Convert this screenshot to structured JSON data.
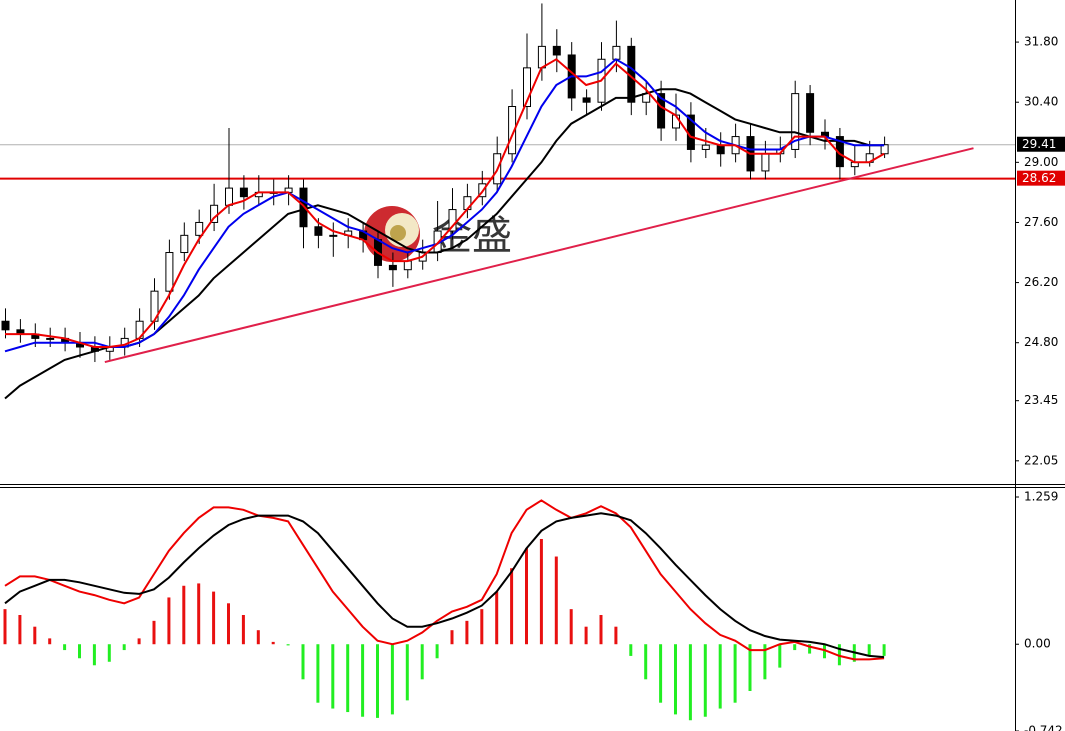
{
  "chart_data": [
    {
      "type": "candlestick",
      "open": [
        25.3,
        25.1,
        25.0,
        24.9,
        24.9,
        24.8,
        24.7,
        24.6,
        24.7,
        24.9,
        25.3,
        26.0,
        26.9,
        27.3,
        27.6,
        28.0,
        28.4,
        28.2,
        28.3,
        28.3,
        28.4,
        27.5,
        27.3,
        27.3,
        27.4,
        27.2,
        26.6,
        26.5,
        26.7,
        26.9,
        27.4,
        27.9,
        28.2,
        28.5,
        29.2,
        30.3,
        31.2,
        31.7,
        31.5,
        30.5,
        30.4,
        31.4,
        31.7,
        30.4,
        30.6,
        29.8,
        30.1,
        29.3,
        29.4,
        29.2,
        29.6,
        28.8,
        29.2,
        29.3,
        30.6,
        29.7,
        29.6,
        28.9,
        29.0,
        29.2
      ],
      "high": [
        25.6,
        25.35,
        25.25,
        25.15,
        25.15,
        25.05,
        24.95,
        24.95,
        25.15,
        25.6,
        26.3,
        27.2,
        27.6,
        27.9,
        28.5,
        29.8,
        28.7,
        28.7,
        28.6,
        28.7,
        28.6,
        27.7,
        27.6,
        27.7,
        27.6,
        27.4,
        26.9,
        26.9,
        27.2,
        28.1,
        28.4,
        28.5,
        28.8,
        29.6,
        30.7,
        32.0,
        32.7,
        32.1,
        31.8,
        30.7,
        31.8,
        32.3,
        31.9,
        30.9,
        30.9,
        30.6,
        30.4,
        29.8,
        29.7,
        29.9,
        29.9,
        29.5,
        29.6,
        30.9,
        30.8,
        30.0,
        29.8,
        29.4,
        29.5,
        29.6
      ],
      "low": [
        24.9,
        24.8,
        24.7,
        24.7,
        24.6,
        24.45,
        24.35,
        24.4,
        24.5,
        24.7,
        25.1,
        25.8,
        26.7,
        27.1,
        27.4,
        27.8,
        27.9,
        28.0,
        28.0,
        28.0,
        27.0,
        27.0,
        26.8,
        27.0,
        26.9,
        26.3,
        26.1,
        26.3,
        26.5,
        26.7,
        27.2,
        27.7,
        28.0,
        28.3,
        29.0,
        30.0,
        30.9,
        31.1,
        30.2,
        30.1,
        30.2,
        31.1,
        30.1,
        30.1,
        29.5,
        29.5,
        29.0,
        29.1,
        28.9,
        29.0,
        28.6,
        28.6,
        29.0,
        29.1,
        29.4,
        29.3,
        28.6,
        28.7,
        28.9,
        29.1
      ],
      "close": [
        25.1,
        25.0,
        24.9,
        24.9,
        24.8,
        24.7,
        24.6,
        24.7,
        24.9,
        25.3,
        26.0,
        26.9,
        27.3,
        27.6,
        28.0,
        28.4,
        28.2,
        28.3,
        28.3,
        28.4,
        27.5,
        27.3,
        27.3,
        27.4,
        27.2,
        26.6,
        26.5,
        26.7,
        26.9,
        27.4,
        27.9,
        28.2,
        28.5,
        29.2,
        30.3,
        31.2,
        31.7,
        31.5,
        30.5,
        30.4,
        31.4,
        31.7,
        30.4,
        30.6,
        29.8,
        30.1,
        29.3,
        29.4,
        29.2,
        29.6,
        28.8,
        29.2,
        29.3,
        30.6,
        29.7,
        29.6,
        28.9,
        29.0,
        29.2,
        29.41
      ],
      "overlays": [
        {
          "color": "#000000",
          "values": [
            23.5,
            23.8,
            24.0,
            24.2,
            24.4,
            24.5,
            24.6,
            24.7,
            24.7,
            24.8,
            25.0,
            25.3,
            25.6,
            25.9,
            26.3,
            26.6,
            26.9,
            27.2,
            27.5,
            27.8,
            27.9,
            28.0,
            27.9,
            27.8,
            27.6,
            27.4,
            27.2,
            27.0,
            26.9,
            26.9,
            27.0,
            27.2,
            27.5,
            27.8,
            28.2,
            28.6,
            29.0,
            29.5,
            29.9,
            30.1,
            30.3,
            30.5,
            30.5,
            30.6,
            30.7,
            30.7,
            30.6,
            30.4,
            30.2,
            30.0,
            29.9,
            29.8,
            29.7,
            29.7,
            29.6,
            29.5,
            29.5,
            29.5,
            29.4,
            29.4
          ]
        },
        {
          "color": "#0000ee",
          "values": [
            24.6,
            24.7,
            24.8,
            24.8,
            24.8,
            24.8,
            24.8,
            24.7,
            24.7,
            24.8,
            25.0,
            25.4,
            25.9,
            26.5,
            27.0,
            27.5,
            27.8,
            28.0,
            28.2,
            28.3,
            28.1,
            27.9,
            27.7,
            27.5,
            27.4,
            27.2,
            27.0,
            26.9,
            27.0,
            27.1,
            27.3,
            27.6,
            27.9,
            28.3,
            28.9,
            29.6,
            30.3,
            30.8,
            31.0,
            31.0,
            31.1,
            31.4,
            31.2,
            30.9,
            30.5,
            30.3,
            30.0,
            29.7,
            29.5,
            29.4,
            29.3,
            29.3,
            29.3,
            29.5,
            29.6,
            29.6,
            29.5,
            29.4,
            29.4,
            29.4
          ]
        },
        {
          "color": "#ee0000",
          "values": [
            25.0,
            25.0,
            25.0,
            24.95,
            24.9,
            24.8,
            24.7,
            24.7,
            24.75,
            24.9,
            25.3,
            25.9,
            26.6,
            27.2,
            27.7,
            28.0,
            28.1,
            28.3,
            28.3,
            28.3,
            28.0,
            27.6,
            27.4,
            27.3,
            27.2,
            26.9,
            26.7,
            26.7,
            26.8,
            27.1,
            27.5,
            27.9,
            28.3,
            28.8,
            29.6,
            30.4,
            31.2,
            31.4,
            31.1,
            30.8,
            30.9,
            31.3,
            31.0,
            30.7,
            30.3,
            30.1,
            29.6,
            29.5,
            29.4,
            29.4,
            29.2,
            29.2,
            29.2,
            29.6,
            29.6,
            29.6,
            29.2,
            29.0,
            29.0,
            29.2
          ]
        }
      ],
      "hlines": [
        {
          "value": 29.41,
          "color": "#b0b0b0",
          "label_bg": "#000000"
        },
        {
          "value": 28.62,
          "color": "#e00000",
          "label_bg": "#e00000"
        }
      ],
      "trendline": {
        "x": [
          6.7,
          65
        ],
        "y": [
          24.35,
          29.33
        ],
        "color": "#e0204a"
      },
      "ylim": [
        21.51,
        32.78
      ],
      "yticks": [
        {
          "value": 31.8,
          "label": "31.80"
        },
        {
          "value": 30.4,
          "label": "30.40"
        },
        {
          "value": 29,
          "label": "29.00"
        },
        {
          "value": 27.6,
          "label": "27.60"
        },
        {
          "value": 26.2,
          "label": "26.20"
        },
        {
          "value": 24.8,
          "label": "24.80"
        },
        {
          "value": 23.45,
          "label": "23.45"
        },
        {
          "value": 22.05,
          "label": "22.05"
        }
      ],
      "up_color": "#ffffff",
      "down_color": "#000000"
    },
    {
      "type": "macd",
      "histogram": [
        0.3,
        0.25,
        0.15,
        0.05,
        -0.05,
        -0.12,
        -0.18,
        -0.15,
        -0.05,
        0.05,
        0.2,
        0.4,
        0.5,
        0.52,
        0.45,
        0.35,
        0.25,
        0.12,
        0.02,
        -0.01,
        -0.3,
        -0.5,
        -0.55,
        -0.58,
        -0.62,
        -0.63,
        -0.6,
        -0.48,
        -0.3,
        -0.12,
        0.12,
        0.2,
        0.3,
        0.45,
        0.65,
        0.82,
        0.9,
        0.75,
        0.3,
        0.15,
        0.25,
        0.15,
        -0.1,
        -0.3,
        -0.5,
        -0.6,
        -0.65,
        -0.62,
        -0.55,
        -0.5,
        -0.4,
        -0.3,
        -0.2,
        -0.05,
        -0.08,
        -0.12,
        -0.18,
        -0.15,
        -0.1,
        -0.1
      ],
      "pos_color": "#e81010",
      "neg_color": "#22ee22",
      "series": [
        {
          "color": "#ee0000",
          "values": [
            0.5,
            0.58,
            0.58,
            0.55,
            0.5,
            0.45,
            0.42,
            0.38,
            0.35,
            0.4,
            0.6,
            0.8,
            0.95,
            1.08,
            1.17,
            1.17,
            1.15,
            1.1,
            1.08,
            1.05,
            0.85,
            0.65,
            0.45,
            0.3,
            0.15,
            0.03,
            0.0,
            0.03,
            0.1,
            0.2,
            0.28,
            0.32,
            0.38,
            0.6,
            0.95,
            1.15,
            1.23,
            1.15,
            1.08,
            1.12,
            1.18,
            1.12,
            1.0,
            0.8,
            0.6,
            0.45,
            0.3,
            0.18,
            0.08,
            0.03,
            -0.05,
            -0.05,
            0.0,
            0.02,
            -0.02,
            -0.05,
            -0.1,
            -0.13,
            -0.13,
            -0.12
          ]
        },
        {
          "color": "#000000",
          "values": [
            0.35,
            0.45,
            0.5,
            0.55,
            0.55,
            0.53,
            0.5,
            0.47,
            0.44,
            0.43,
            0.47,
            0.57,
            0.7,
            0.82,
            0.93,
            1.02,
            1.07,
            1.1,
            1.1,
            1.1,
            1.05,
            0.95,
            0.8,
            0.65,
            0.5,
            0.35,
            0.22,
            0.15,
            0.15,
            0.18,
            0.22,
            0.27,
            0.33,
            0.45,
            0.62,
            0.82,
            0.97,
            1.05,
            1.08,
            1.1,
            1.12,
            1.1,
            1.06,
            0.95,
            0.82,
            0.68,
            0.55,
            0.42,
            0.3,
            0.2,
            0.12,
            0.07,
            0.04,
            0.03,
            0.02,
            0.0,
            -0.04,
            -0.07,
            -0.1,
            -0.11
          ]
        }
      ],
      "ylim": [
        -0.742,
        1.336
      ],
      "yticks": [
        1.259,
        {
          "value": 0,
          "label": "0.00"
        },
        -0.742
      ]
    }
  ],
  "watermark": "金盛"
}
